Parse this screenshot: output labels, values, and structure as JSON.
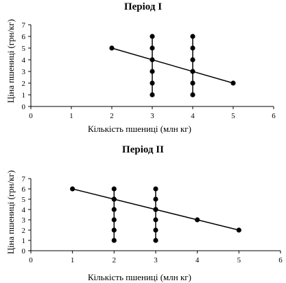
{
  "chart_data": [
    {
      "type": "line",
      "title": "Період I",
      "xlabel": "Кількість пшениці (млн кг)",
      "ylabel": "Ціна пшениці (грн/кг)",
      "xlim": [
        0,
        6
      ],
      "ylim": [
        0,
        7
      ],
      "xticks": [
        0,
        1,
        2,
        3,
        4,
        5,
        6
      ],
      "yticks": [
        0,
        1,
        2,
        3,
        4,
        5,
        6,
        7
      ],
      "grid": false,
      "series": [
        {
          "x": [
            2,
            5
          ],
          "y": [
            5,
            2
          ],
          "markers": true
        },
        {
          "x": [
            3,
            3,
            3,
            3,
            3,
            3
          ],
          "y": [
            1,
            2,
            3,
            4,
            5,
            6
          ],
          "markers": true
        },
        {
          "x": [
            4,
            4,
            4,
            4,
            4,
            4
          ],
          "y": [
            1,
            2,
            3,
            4,
            5,
            6
          ],
          "markers": true
        }
      ]
    },
    {
      "type": "line",
      "title": "Період II",
      "xlabel": "Кількість пшениці (млн кг)",
      "ylabel": "Ціна пшениці (грн/кг)",
      "xlim": [
        0,
        6
      ],
      "ylim": [
        0,
        7
      ],
      "xticks": [
        0,
        1,
        2,
        3,
        4,
        5,
        6
      ],
      "yticks": [
        0,
        1,
        2,
        3,
        4,
        5,
        6,
        7
      ],
      "grid": false,
      "series": [
        {
          "x": [
            1,
            2,
            3,
            4,
            5
          ],
          "y": [
            6,
            5,
            4,
            3,
            2
          ],
          "markers": true
        },
        {
          "x": [
            2,
            2,
            2,
            2,
            2,
            2
          ],
          "y": [
            1,
            2,
            3,
            4,
            5,
            6
          ],
          "markers": true
        },
        {
          "x": [
            3,
            3,
            3,
            3,
            3,
            3
          ],
          "y": [
            1,
            2,
            3,
            4,
            5,
            6
          ],
          "markers": true
        }
      ]
    }
  ]
}
